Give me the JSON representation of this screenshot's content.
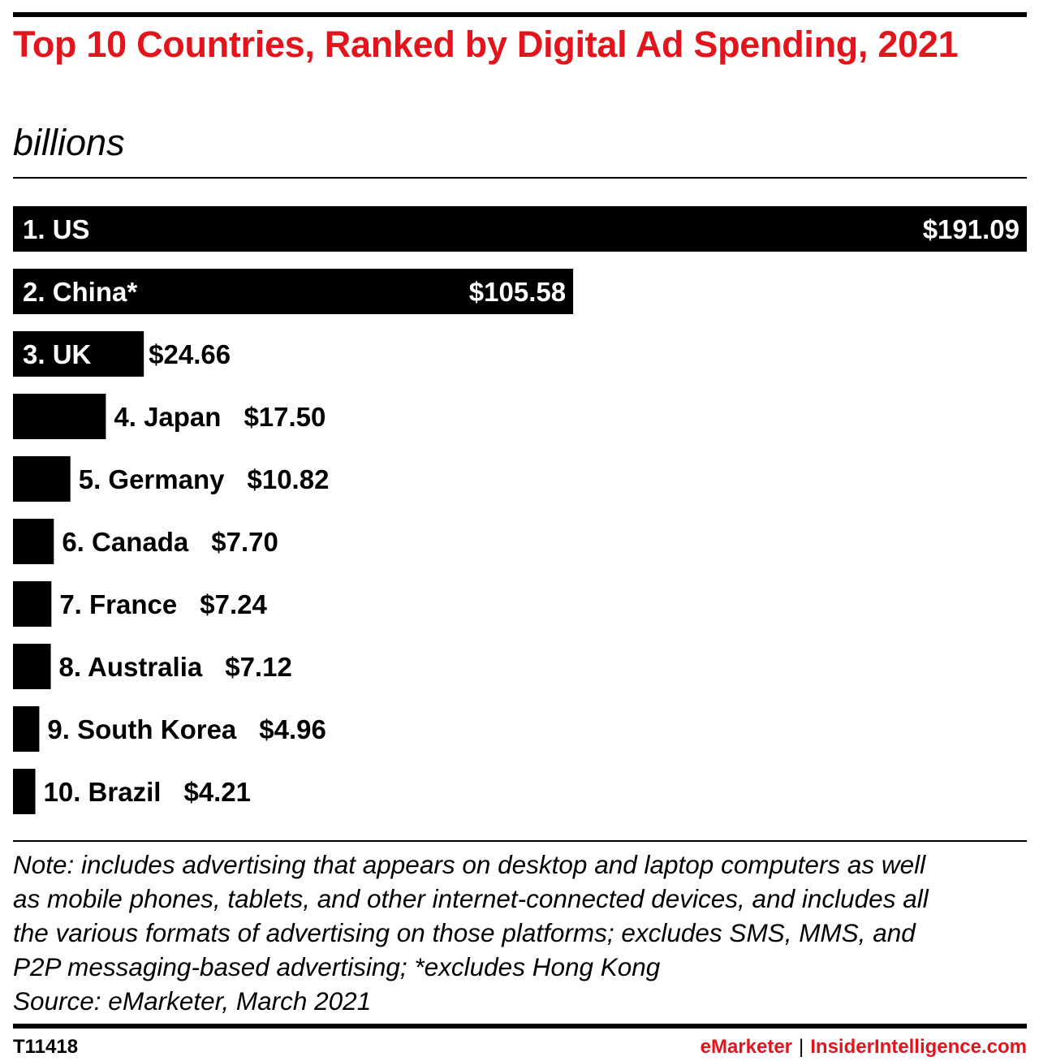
{
  "header": {
    "title": "Top 10 Countries, Ranked by Digital Ad Spending, 2021",
    "subtitle": "billions"
  },
  "chart_data": {
    "type": "bar",
    "orientation": "horizontal",
    "title": "Top 10 Countries, Ranked by Digital Ad Spending, 2021",
    "subtitle": "billions",
    "categories": [
      "1. US",
      "2. China*",
      "3. UK",
      "4. Japan",
      "5. Germany",
      "6. Canada",
      "7. France",
      "8. Australia",
      "9. South Korea",
      "10. Brazil"
    ],
    "values": [
      191.09,
      105.58,
      24.66,
      17.5,
      10.82,
      7.7,
      7.24,
      7.12,
      4.96,
      4.21
    ],
    "value_labels": [
      "$191.09",
      "$105.58",
      "$24.66",
      "$17.50",
      "$10.82",
      "$7.70",
      "$7.24",
      "$7.12",
      "$4.96",
      "$4.21"
    ],
    "xlim": [
      0,
      191.09
    ],
    "grid": false,
    "bar_color": "#000000"
  },
  "note": {
    "lines": [
      "Note: includes advertising that appears on desktop and laptop computers as well",
      "as mobile phones, tablets, and other internet-connected devices, and includes all",
      "the various formats of advertising on those platforms; excludes SMS, MMS, and",
      "P2P messaging-based advertising; *excludes Hong Kong",
      "Source: eMarketer, March 2021"
    ]
  },
  "footer": {
    "id": "T11418",
    "brand_primary": "eMarketer",
    "separator": "|",
    "brand_secondary": "InsiderIntelligence.com"
  },
  "colors": {
    "title": "#e4141d",
    "brand": "#e4141d",
    "bars": "#000000"
  }
}
